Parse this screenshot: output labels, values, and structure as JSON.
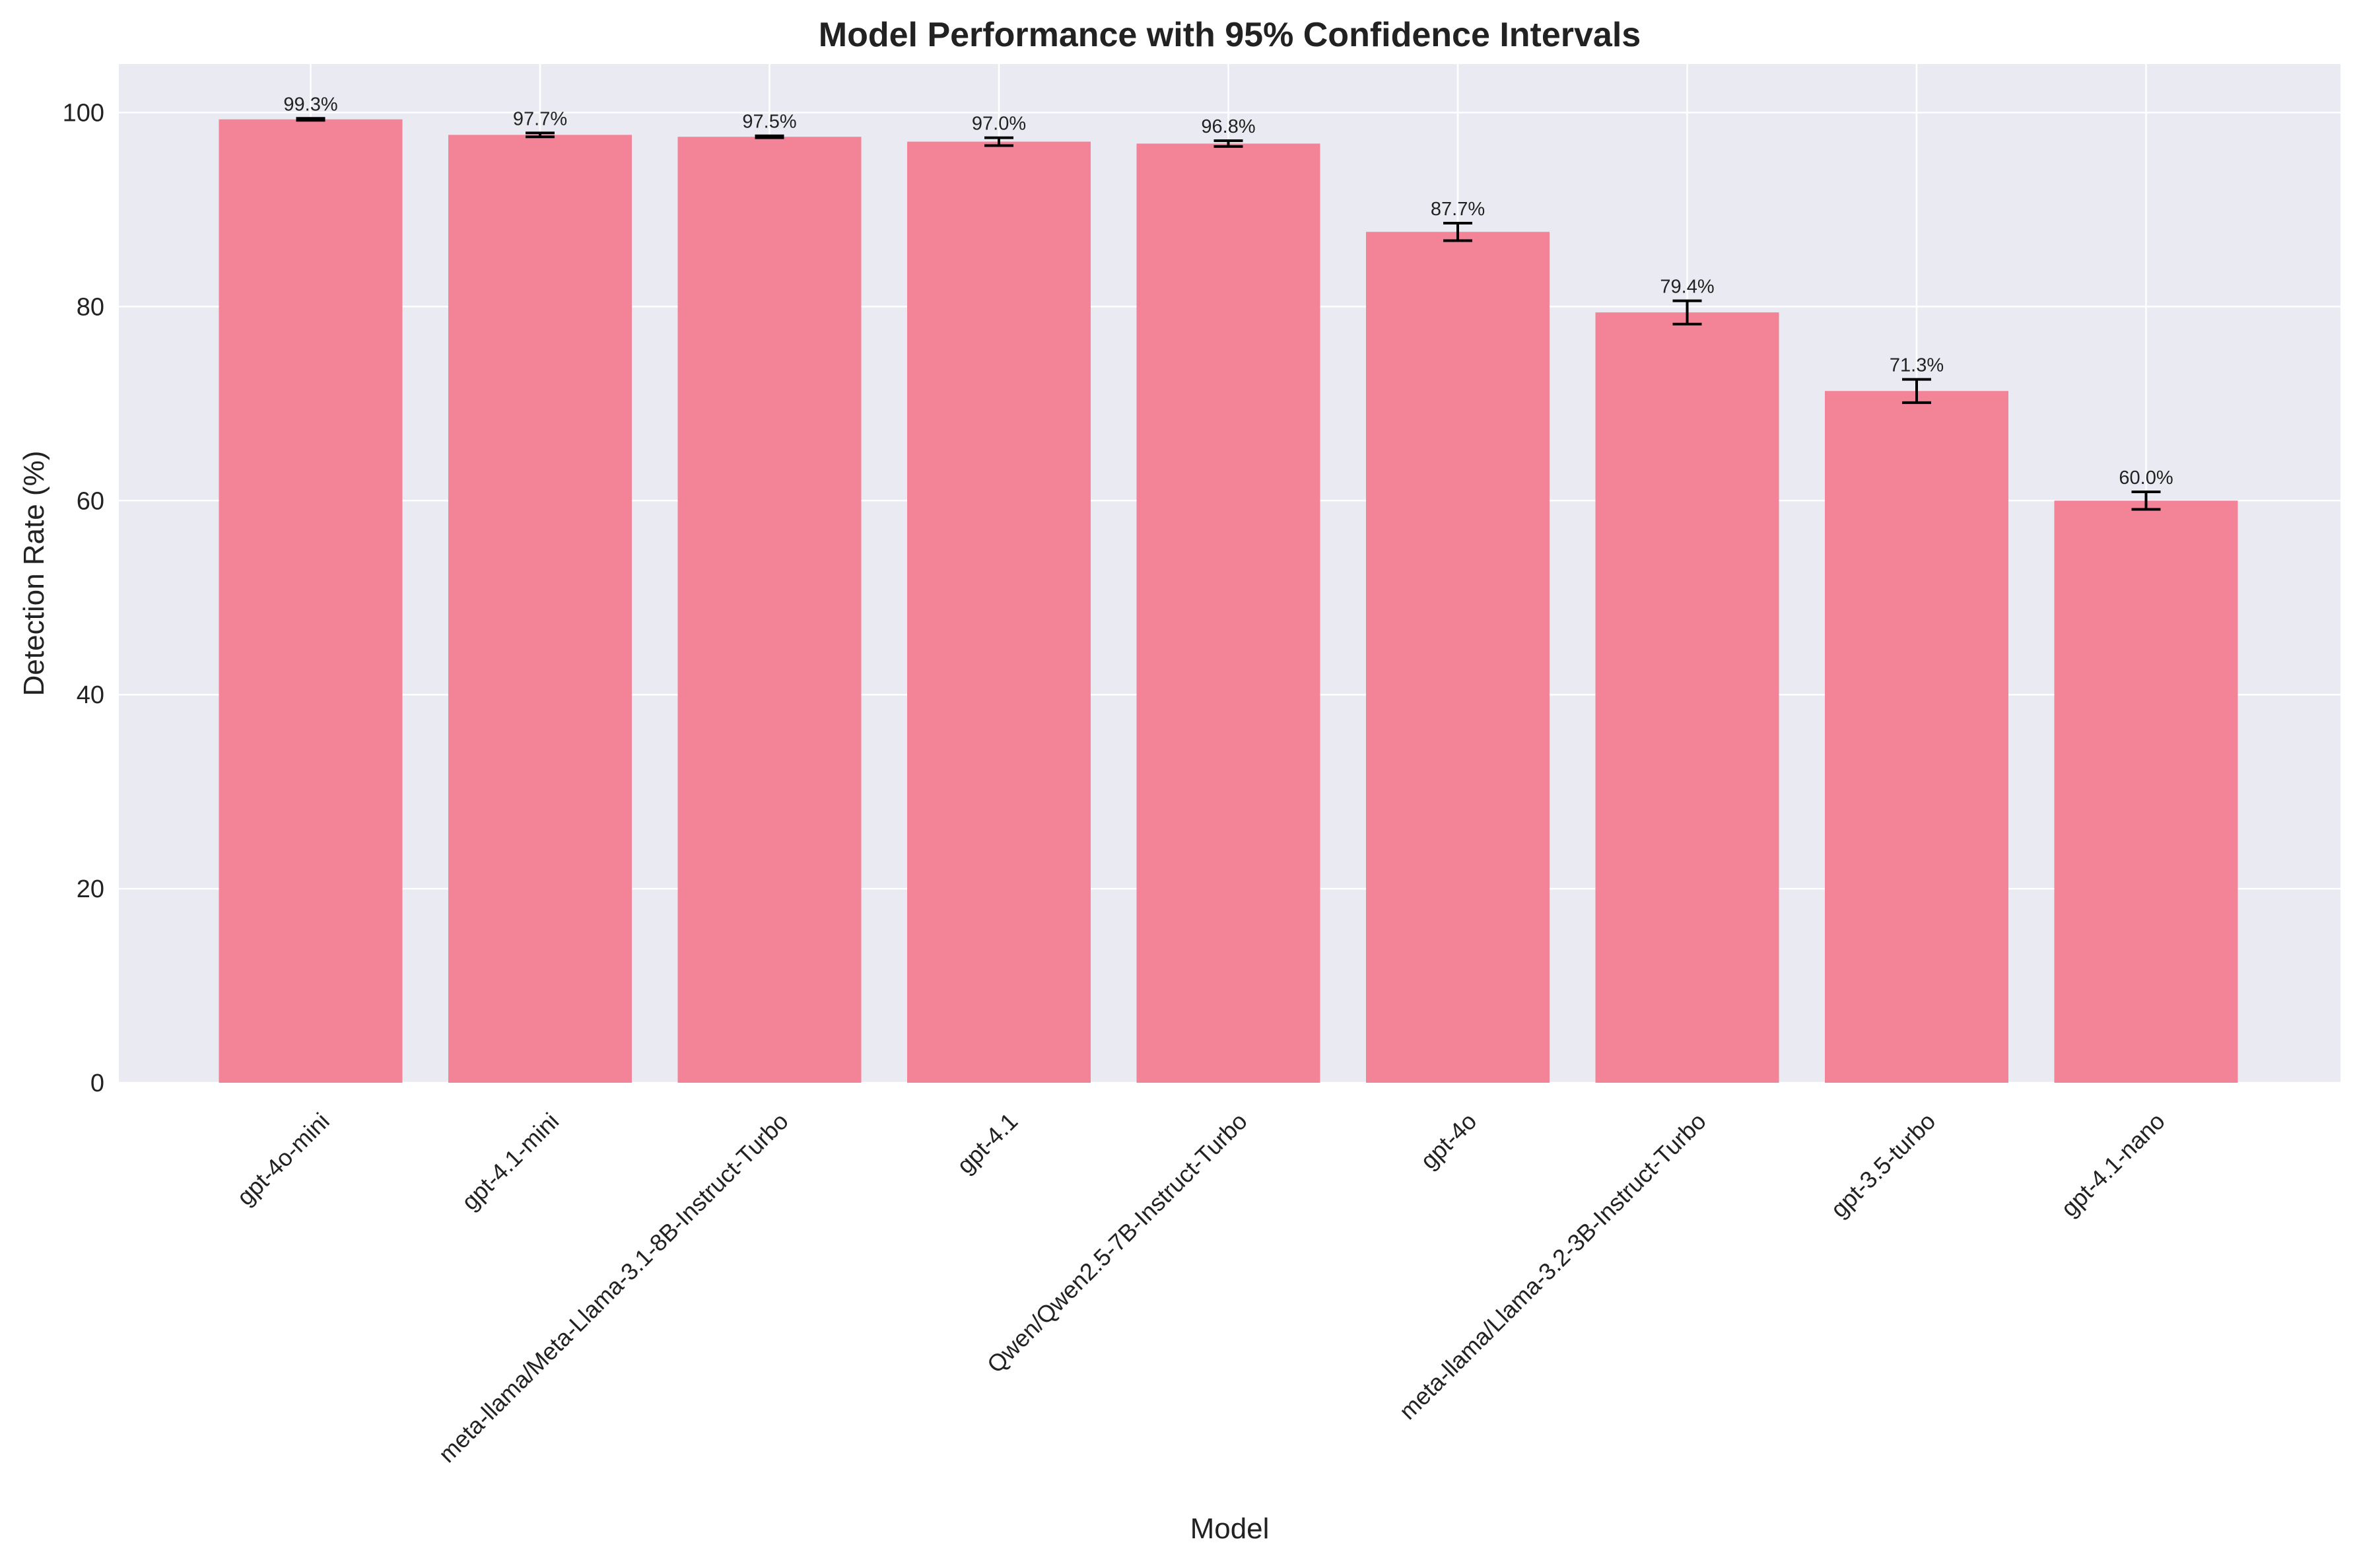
{
  "chart_data": {
    "type": "bar",
    "title": "Model Performance with 95% Confidence Intervals",
    "xlabel": "Model",
    "ylabel": "Detection Rate (%)",
    "ylim": [
      0,
      105
    ],
    "yticks": [
      0,
      20,
      40,
      60,
      80,
      100
    ],
    "grid": true,
    "categories": [
      "gpt-4o-mini",
      "gpt-4.1-mini",
      "meta-llama/Meta-Llama-3.1-8B-Instruct-Turbo",
      "gpt-4.1",
      "Qwen/Qwen2.5-7B-Instruct-Turbo",
      "gpt-4o",
      "meta-llama/Llama-3.2-3B-Instruct-Turbo",
      "gpt-3.5-turbo",
      "gpt-4.1-nano"
    ],
    "values": [
      99.3,
      97.7,
      97.5,
      97.0,
      96.8,
      87.7,
      79.4,
      71.3,
      60.0
    ],
    "ci_low": [
      99.2,
      97.5,
      97.4,
      96.6,
      96.5,
      86.8,
      78.2,
      70.1,
      59.1
    ],
    "ci_high": [
      99.4,
      97.9,
      97.6,
      97.4,
      97.1,
      88.6,
      80.6,
      72.5,
      60.9
    ],
    "data_labels": [
      "99.3%",
      "97.7%",
      "97.5%",
      "97.0%",
      "96.8%",
      "87.7%",
      "79.4%",
      "71.3%",
      "60.0%"
    ],
    "colors": {
      "bar": "#f38397",
      "plot_background": "#eaeaf2",
      "grid": "#ffffff",
      "error_bar": "#000000"
    }
  }
}
